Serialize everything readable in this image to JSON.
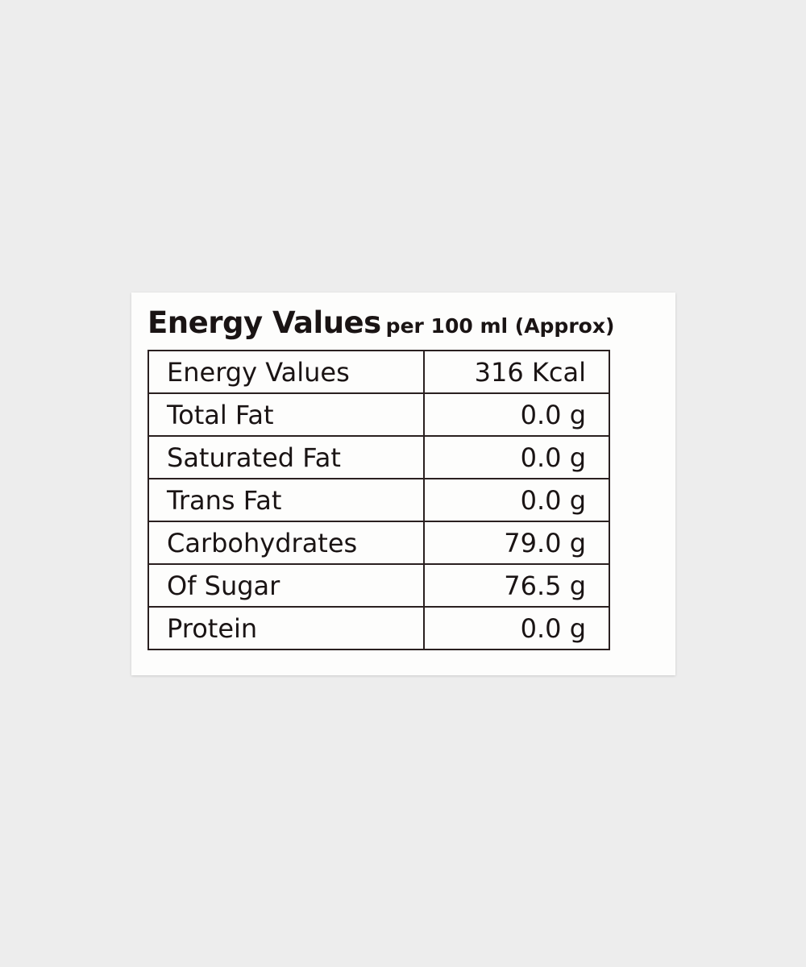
{
  "header": {
    "title": "Energy Values",
    "subtitle": "per 100 ml (Approx)"
  },
  "table": {
    "rows": [
      [
        "Energy Values",
        "316 Kcal"
      ],
      [
        "Total Fat",
        "0.0 g"
      ],
      [
        "Saturated Fat",
        "0.0 g"
      ],
      [
        "Trans Fat",
        "0.0 g"
      ],
      [
        "Carbohydrates",
        "79.0 g"
      ],
      [
        "Of Sugar",
        "76.5 g"
      ],
      [
        "Protein",
        "0.0 g"
      ]
    ]
  }
}
